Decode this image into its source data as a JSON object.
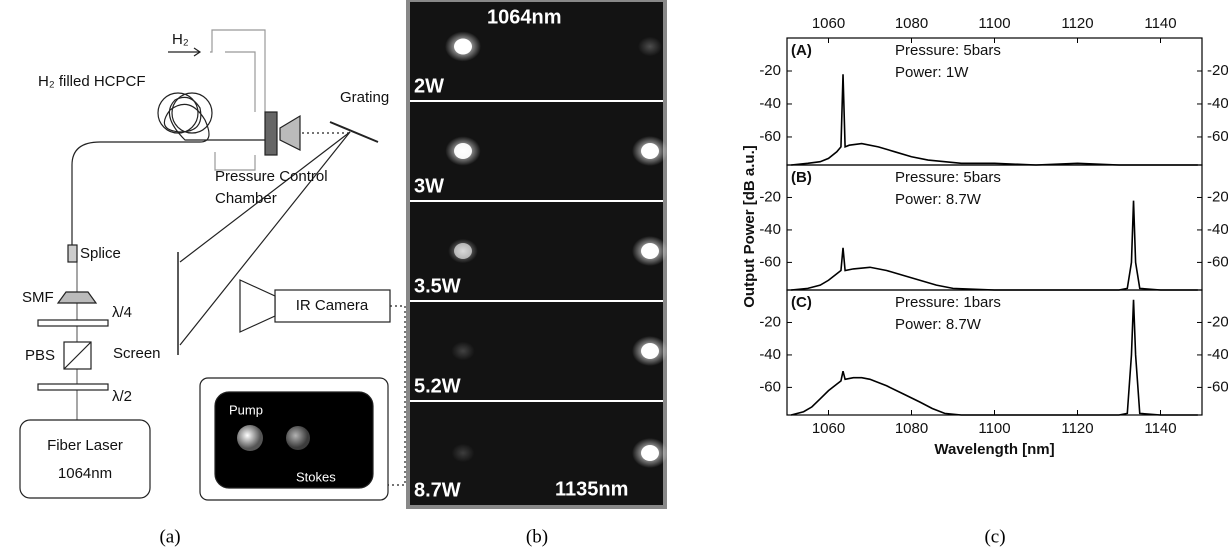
{
  "panel_a": {
    "gas_label": "H₂",
    "fiber_label": "H₂ filled HCPCF",
    "grating": "Grating",
    "chamber_label": [
      "Pressure Control",
      "Chamber"
    ],
    "splice": "Splice",
    "smf": "SMF",
    "quarter_wave": "λ/4",
    "pbs": "PBS",
    "half_wave": "λ/2",
    "laser": [
      "Fiber Laser",
      "1064nm"
    ],
    "screen": "Screen",
    "camera": "IR Camera",
    "pump": "Pump",
    "stokes": "Stokes"
  },
  "panel_b": {
    "pump_wavelength": "1064nm",
    "stokes_wavelength": "1135nm",
    "powers": [
      "2W",
      "3W",
      "3.5W",
      "5.2W",
      "8.7W"
    ]
  },
  "captions": [
    "(a)",
    "(b)",
    "(c)"
  ],
  "chart_data": [
    {
      "type": "line",
      "panel_label": "(A)",
      "annotations": [
        "Pressure: 5bars",
        "Power: 1W"
      ],
      "color": "#000000",
      "x": [
        1051,
        1055,
        1058,
        1060,
        1062,
        1063,
        1063.5,
        1064,
        1065,
        1068,
        1072,
        1076,
        1080,
        1084,
        1088,
        1092,
        1100,
        1110,
        1120,
        1130,
        1140,
        1149
      ],
      "values": [
        -77,
        -76,
        -75,
        -73,
        -69,
        -66,
        -22,
        -66,
        -65,
        -64,
        -66,
        -69,
        -72,
        -74,
        -75,
        -76,
        -76,
        -77,
        -76,
        -77,
        -77,
        -77
      ],
      "xlim": [
        1050,
        1150
      ],
      "xticks": [
        1060,
        1080,
        1100,
        1120,
        1140
      ],
      "ylim": [
        -77,
        0
      ],
      "yticks": [
        -20,
        -40,
        -60
      ],
      "y2lim": [
        -77,
        0
      ],
      "y2ticks": [
        -20,
        -40,
        -60
      ]
    },
    {
      "type": "line",
      "panel_label": "(B)",
      "annotations": [
        "Pressure: 5bars",
        "Power: 8.7W"
      ],
      "color": "#000000",
      "ylabel": "Output Power [dB a.u.]",
      "x": [
        1051,
        1055,
        1058,
        1060,
        1062,
        1063,
        1063.5,
        1064,
        1066,
        1070,
        1074,
        1078,
        1082,
        1086,
        1090,
        1100,
        1110,
        1120,
        1130,
        1132,
        1133,
        1133.5,
        1134,
        1135,
        1140,
        1149
      ],
      "values": [
        -77,
        -76,
        -74,
        -71,
        -67,
        -65,
        -51,
        -65,
        -64,
        -63,
        -65,
        -68,
        -71,
        -74,
        -76,
        -77,
        -77,
        -77,
        -77,
        -76,
        -60,
        -22,
        -60,
        -76,
        -77,
        -77
      ],
      "xlim": [
        1050,
        1150
      ],
      "ylim": [
        -77,
        0
      ],
      "yticks": [
        -20,
        -40,
        -60
      ],
      "y2lim": [
        -77,
        0
      ],
      "y2ticks": [
        -20,
        -40,
        -60
      ]
    },
    {
      "type": "line",
      "panel_label": "(C)",
      "annotations": [
        "Pressure: 1bars",
        "Power: 8.7W"
      ],
      "color": "#000000",
      "xlabel": "Wavelength [nm]",
      "x": [
        1051,
        1054,
        1056,
        1058,
        1060,
        1062,
        1063,
        1063.5,
        1064,
        1066,
        1068,
        1070,
        1074,
        1078,
        1082,
        1085,
        1088,
        1092,
        1100,
        1110,
        1120,
        1130,
        1132,
        1133,
        1133.5,
        1134,
        1135,
        1140,
        1149
      ],
      "values": [
        -77,
        -75,
        -72,
        -67,
        -62,
        -58,
        -56,
        -50,
        -55,
        -54,
        -54,
        -55,
        -59,
        -64,
        -69,
        -73,
        -76,
        -77,
        -77,
        -77,
        -77,
        -77,
        -76,
        -40,
        -6,
        -40,
        -76,
        -77,
        -77
      ],
      "xlim": [
        1050,
        1150
      ],
      "xticks": [
        1060,
        1080,
        1100,
        1120,
        1140
      ],
      "ylim": [
        -77,
        0
      ],
      "yticks": [
        -20,
        -40,
        -60
      ],
      "y2lim": [
        -77,
        0
      ],
      "y2ticks": [
        -20,
        -40,
        -60
      ]
    }
  ]
}
